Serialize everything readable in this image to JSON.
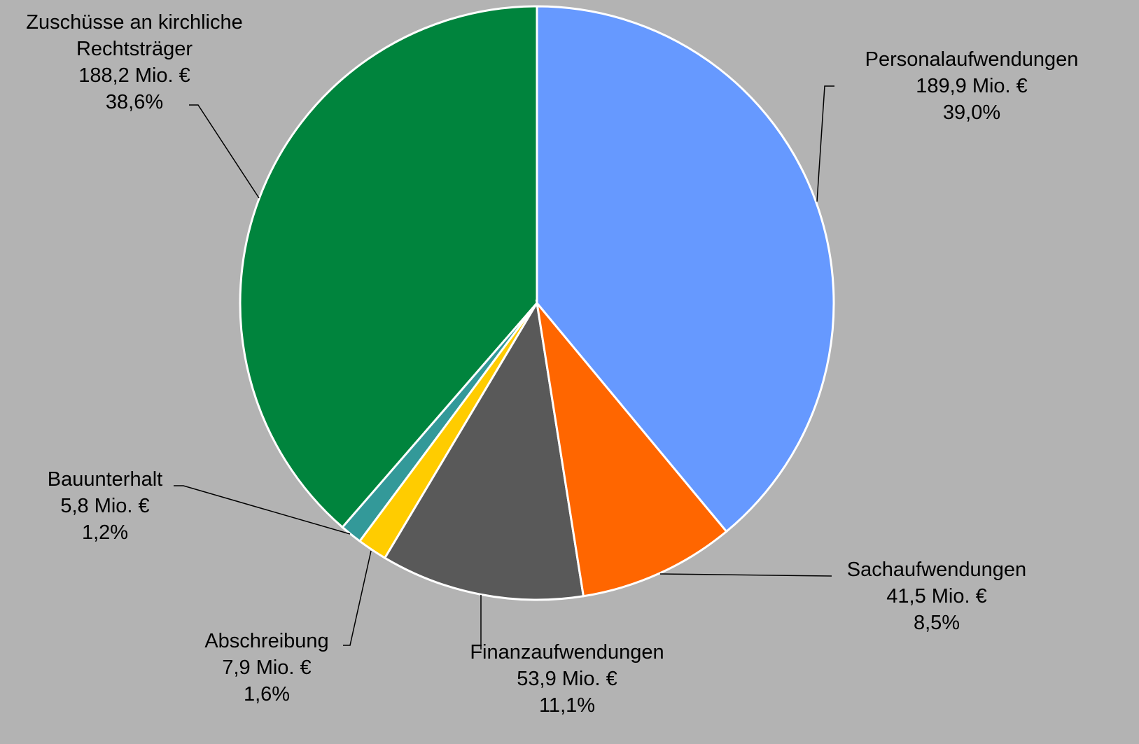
{
  "chart_data": {
    "type": "pie",
    "categories": [
      "Personalaufwendungen",
      "Sachaufwendungen",
      "Finanzaufwendungen",
      "Abschreibung",
      "Bauunterhalt",
      "Zuschüsse an kirchliche Rechtsträger"
    ],
    "values": [
      189.9,
      41.5,
      53.9,
      7.9,
      5.8,
      188.2
    ],
    "value_labels": [
      "189,9 Mio. €",
      "41,5 Mio. €",
      "53,9 Mio. €",
      "7,9 Mio. €",
      "5,8 Mio. €",
      "188,2 Mio. €"
    ],
    "percent_labels": [
      "39,0%",
      "8,5%",
      "11,1%",
      "1,6%",
      "1,2%",
      "38,6%"
    ],
    "colors": [
      "#6699ff",
      "#ff6600",
      "#595959",
      "#ffcc00",
      "#339999",
      "#00843d"
    ]
  }
}
